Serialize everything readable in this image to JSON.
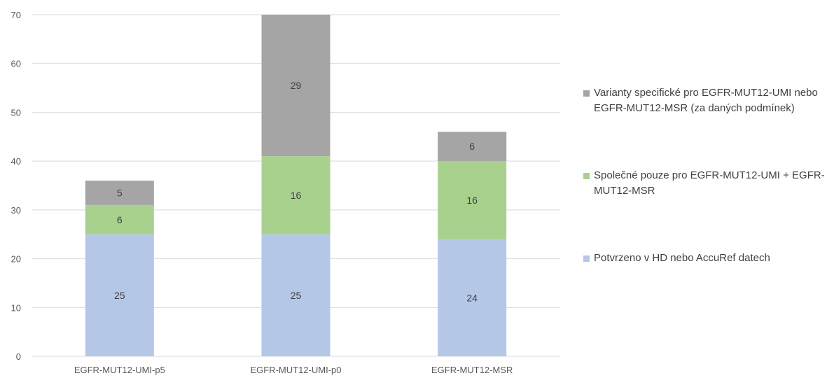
{
  "chart_data": {
    "type": "bar",
    "stacked": true,
    "categories": [
      "EGFR-MUT12-UMI-p5",
      "EGFR-MUT12-UMI-p0",
      "EGFR-MUT12-MSR"
    ],
    "series": [
      {
        "name": "Potvrzeno v HD nebo AccuRef datech",
        "values": [
          25,
          25,
          24
        ],
        "color": "#b4c7e7"
      },
      {
        "name": "Společné pouze pro EGFR-MUT12-UMI + EGFR-MUT12-MSR",
        "values": [
          6,
          16,
          16
        ],
        "color": "#a9d18e"
      },
      {
        "name": "Varianty specifické pro EGFR-MUT12-UMI nebo EGFR-MUT12-MSR (za daných podmínek)",
        "values": [
          5,
          29,
          6
        ],
        "color": "#a5a5a5"
      }
    ],
    "ylim": [
      0,
      70
    ],
    "yticks": [
      "0",
      "10",
      "20",
      "30",
      "40",
      "50",
      "60",
      "70"
    ],
    "grid": true,
    "legend_position": "right"
  }
}
